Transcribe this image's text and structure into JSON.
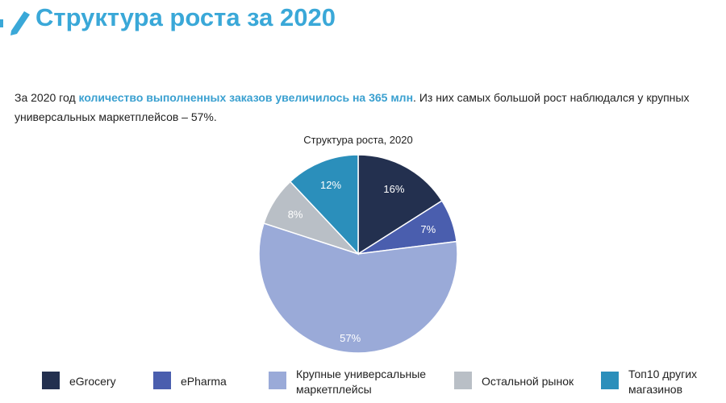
{
  "header": {
    "title": "Структура роста за 2020"
  },
  "paragraph": [
    "За 2020 год ",
    "количество выполненных заказов увеличилось на 365 млн",
    ". Из них самых большой рост наблюдался у крупных универсальных маркетплейсов – 57%."
  ],
  "chart_data": {
    "type": "pie",
    "title": "Структура роста, 2020",
    "categories": [
      "eGrocery",
      "ePharma",
      "Крупные универсальные маркетплейсы",
      "Остальной рынок",
      "Топ10 других магазинов"
    ],
    "values": [
      16,
      7,
      57,
      8,
      12
    ],
    "value_labels": [
      "16%",
      "7%",
      "57%",
      "8%",
      "12%"
    ],
    "colors": [
      "#23304f",
      "#4a5eae",
      "#9aaad8",
      "#b9bfc6",
      "#2b8fbb"
    ]
  }
}
